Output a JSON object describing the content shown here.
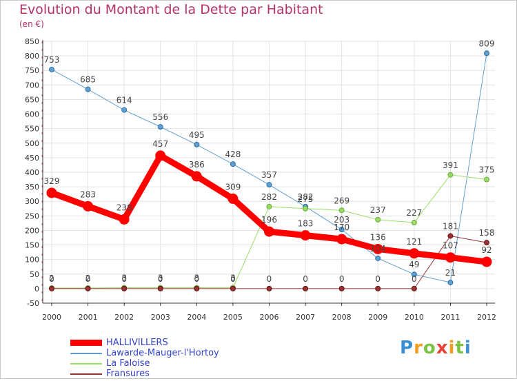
{
  "title": "Evolution du Montant de la Dette par Habitant",
  "unit": "(en €)",
  "logo": {
    "letters": [
      "P",
      "r",
      "o",
      "x",
      "i",
      "t",
      "i"
    ],
    "colors": [
      "#3a8fd0",
      "#f39c1f",
      "#7cc242",
      "#e8433a",
      "#f39c1f",
      "#7cc242",
      "#3a8fd0"
    ]
  },
  "chart_data": {
    "type": "line",
    "x": [
      "2000",
      "2001",
      "2002",
      "2003",
      "2004",
      "2005",
      "2006",
      "2007",
      "2008",
      "2009",
      "2010",
      "2011",
      "2012"
    ],
    "ylim": [
      -50,
      850
    ],
    "yticks": [
      -50,
      0,
      50,
      100,
      150,
      200,
      250,
      300,
      350,
      400,
      450,
      500,
      550,
      600,
      650,
      700,
      750,
      800,
      850
    ],
    "grid": true,
    "legend_position": "bottom-left",
    "series": [
      {
        "name": "HALLIVILLERS",
        "color": "#ff0000",
        "width": 9,
        "marker": 7,
        "values": [
          329,
          283,
          238,
          457,
          386,
          309,
          196,
          183,
          170,
          136,
          121,
          107,
          92
        ],
        "labels": [
          "329",
          "283",
          "238",
          "457",
          "386",
          "309",
          "196",
          "183",
          "170",
          "136",
          "121",
          "107",
          "92"
        ]
      },
      {
        "name": "Lawarde-Mauger-l'Hortoy",
        "color": "#5f9fd0",
        "width": 1,
        "marker": 3.5,
        "values": [
          753,
          685,
          614,
          556,
          495,
          428,
          357,
          282,
          203,
          104,
          49,
          21,
          809
        ],
        "labels": [
          "753",
          "685",
          "614",
          "556",
          "495",
          "428",
          "357",
          "282",
          "203",
          "104",
          "49",
          "21",
          "809"
        ]
      },
      {
        "name": "La Faloise",
        "color": "#99dd66",
        "width": 1,
        "marker": 3.5,
        "values": [
          2,
          2,
          3,
          3,
          3,
          3,
          282,
          275,
          269,
          237,
          227,
          391,
          375
        ],
        "labels": [
          "2",
          "2",
          "3",
          "3",
          "3",
          "3",
          "282",
          "275",
          "269",
          "237",
          "227",
          "391",
          "375"
        ]
      },
      {
        "name": "Fransures",
        "color": "#993333",
        "width": 1,
        "marker": 3.5,
        "values": [
          0,
          0,
          0,
          0,
          0,
          0,
          0,
          0,
          0,
          0,
          0,
          181,
          158
        ],
        "labels": [
          "0",
          "0",
          "0",
          "0",
          "0",
          "0",
          "0",
          "0",
          "0",
          "0",
          "0",
          "181",
          "158"
        ]
      }
    ]
  }
}
